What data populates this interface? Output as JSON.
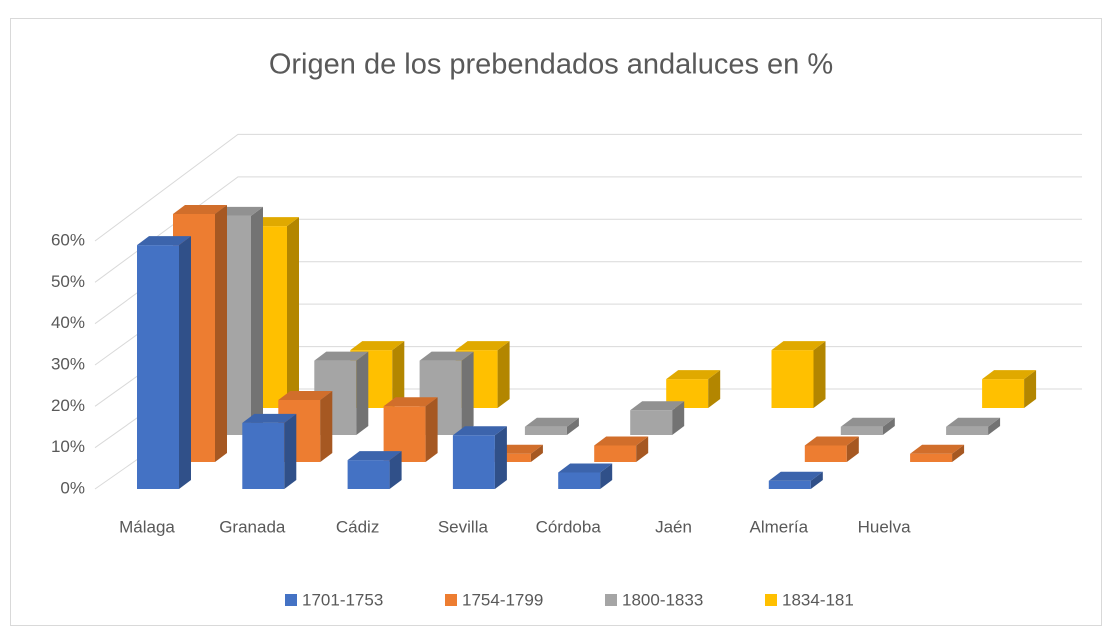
{
  "chart_data": {
    "type": "bar3d",
    "title": "Origen de los prebendados andaluces en %",
    "categories": [
      "Málaga",
      "Granada",
      "Cádiz",
      "Sevilla",
      "Córdoba",
      "Jaén",
      "Almería",
      "Huelva"
    ],
    "series": [
      {
        "name": "1701-1753",
        "color": "#4472c4",
        "values": [
          59,
          16,
          7,
          13,
          4,
          0,
          2,
          0
        ]
      },
      {
        "name": "1754-1799",
        "color": "#ed7d31",
        "values": [
          60,
          15,
          13.5,
          2,
          4,
          0,
          4,
          2
        ]
      },
      {
        "name": "1800-1833",
        "color": "#a5a5a5",
        "values": [
          53,
          18,
          18,
          2,
          6,
          0,
          2,
          2
        ]
      },
      {
        "name": "1834-181",
        "color": "#ffc000",
        "values": [
          44,
          14,
          14,
          0,
          7,
          14,
          0,
          7
        ]
      }
    ],
    "ylim": [
      0,
      60
    ],
    "yticks": [
      {
        "value": 0,
        "label": "0%"
      },
      {
        "value": 10,
        "label": "10%"
      },
      {
        "value": 20,
        "label": "20%"
      },
      {
        "value": 30,
        "label": "30%"
      },
      {
        "value": 40,
        "label": "40%"
      },
      {
        "value": 50,
        "label": "50%"
      },
      {
        "value": 60,
        "label": "60%"
      }
    ],
    "grid": true,
    "legend": "bottom"
  }
}
